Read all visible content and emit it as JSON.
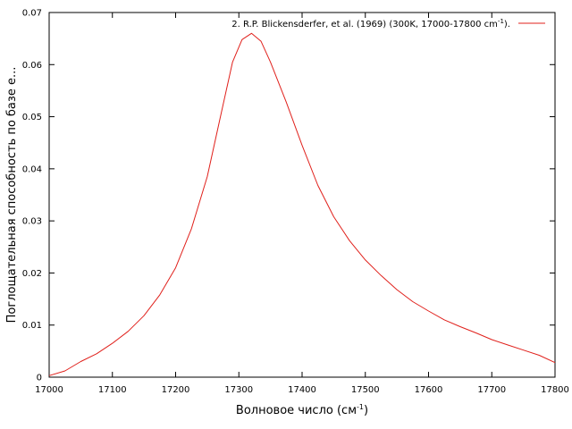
{
  "chart_data": {
    "type": "line",
    "xlabel": "Волновое число (см",
    "xlabel_sup": "-1",
    "xlabel_tail": ")",
    "ylabel": "Поглощательная способность по базе е...",
    "xlim": [
      17000,
      17800
    ],
    "ylim": [
      0,
      0.07
    ],
    "x_ticks": [
      "17000",
      "17100",
      "17200",
      "17300",
      "17400",
      "17500",
      "17600",
      "17700",
      "17800"
    ],
    "y_ticks": [
      "0",
      "0.01",
      "0.02",
      "0.03",
      "0.04",
      "0.05",
      "0.06",
      "0.07"
    ],
    "grid": false,
    "legend_position": "top-right",
    "series": [
      {
        "name": "2. R.P. Blickensderfer, et al. (1969) (300K, 17000-17800 cm",
        "name_sup": "-1",
        "name_tail": ").",
        "color": "#e0201b",
        "x": [
          17000,
          17025,
          17050,
          17075,
          17100,
          17125,
          17150,
          17175,
          17200,
          17225,
          17250,
          17270,
          17290,
          17305,
          17320,
          17335,
          17350,
          17375,
          17400,
          17425,
          17450,
          17475,
          17500,
          17525,
          17550,
          17575,
          17600,
          17625,
          17650,
          17675,
          17700,
          17725,
          17750,
          17775,
          17800
        ],
        "y": [
          0.0003,
          0.0012,
          0.003,
          0.0045,
          0.0065,
          0.0088,
          0.0118,
          0.0158,
          0.021,
          0.0285,
          0.0385,
          0.0495,
          0.0605,
          0.0648,
          0.066,
          0.0645,
          0.0605,
          0.0528,
          0.0445,
          0.0368,
          0.0308,
          0.0262,
          0.0225,
          0.0195,
          0.0168,
          0.0145,
          0.0127,
          0.011,
          0.0097,
          0.0085,
          0.0072,
          0.0062,
          0.0052,
          0.0042,
          0.0028
        ]
      }
    ]
  }
}
